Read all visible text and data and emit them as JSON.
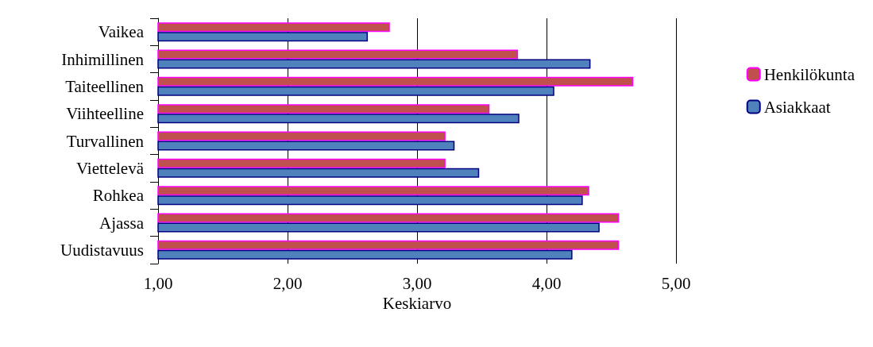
{
  "chart_data": {
    "type": "bar",
    "orientation": "horizontal",
    "xlabel": "Keskiarvo",
    "categories": [
      "Vaikea",
      "Inhimillinen",
      "Taiteellinen",
      "Viihteelline",
      "Turvallinen",
      "Viettelevä",
      "Rohkea",
      "Ajassa",
      "Uudistavuus"
    ],
    "series": [
      {
        "name": "Henkilökunta",
        "color": "#c0504d",
        "values": [
          2.79,
          3.78,
          4.67,
          3.56,
          3.22,
          3.22,
          4.33,
          4.56,
          4.56
        ]
      },
      {
        "name": "Asiakkaat",
        "color": "#4f81bd",
        "values": [
          2.62,
          4.34,
          4.06,
          3.79,
          3.29,
          3.48,
          4.28,
          4.41,
          4.2
        ]
      }
    ],
    "xlim": [
      1,
      5
    ],
    "xticks": [
      {
        "value": 1,
        "label": "1,00"
      },
      {
        "value": 2,
        "label": "2,00"
      },
      {
        "value": 3,
        "label": "3,00"
      },
      {
        "value": 4,
        "label": "4,00"
      },
      {
        "value": 5,
        "label": "5,00"
      }
    ],
    "grid": "x",
    "legend": "right"
  }
}
